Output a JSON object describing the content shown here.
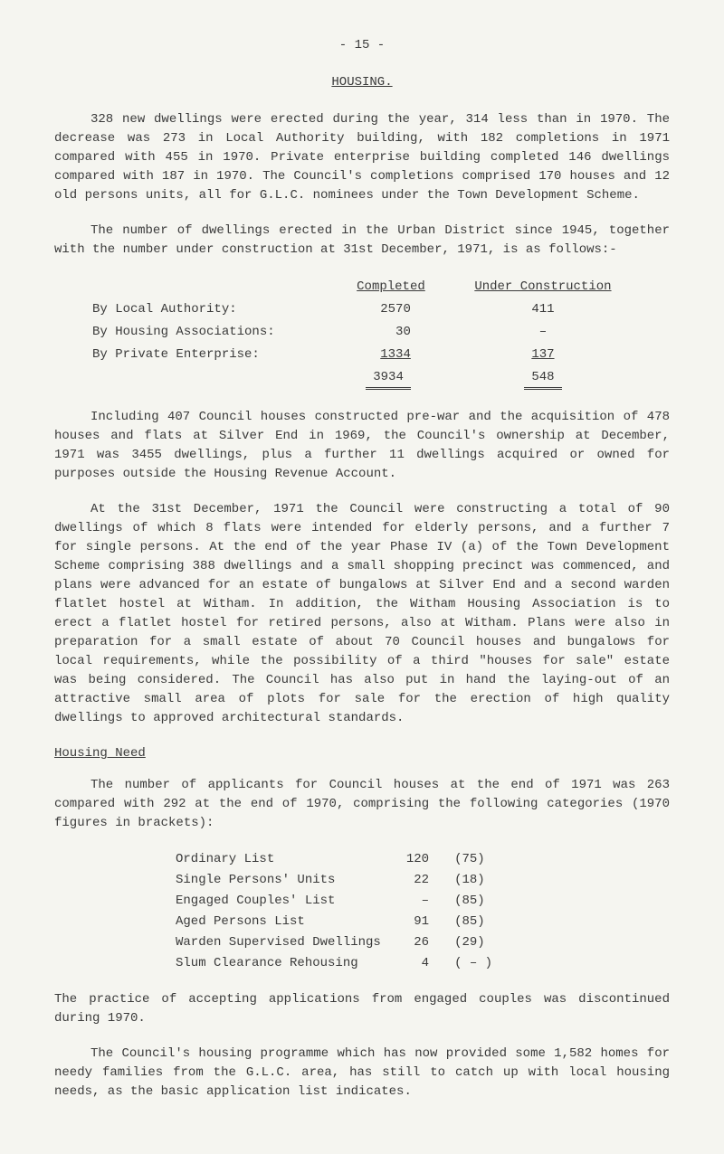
{
  "page_number": "- 15 -",
  "title": "HOUSING.",
  "para1": "328 new dwellings were erected during the year, 314 less than in 1970. The decrease was 273 in Local Authority building, with 182 completions in 1971 compared with 455 in 1970. Private enterprise building completed 146 dwellings compared with 187 in 1970. The Council's completions comprised 170 houses and 12 old persons units, all for G.L.C. nominees under the Town Development Scheme.",
  "para2": "The number of dwellings erected in the Urban District since 1945, together with the number under construction at 31st December, 1971, is as follows:-",
  "table1": {
    "col_headers": [
      "",
      "Completed",
      "Under Construction"
    ],
    "rows": [
      [
        "By Local Authority:",
        "2570",
        "411"
      ],
      [
        "By Housing Associations:",
        "30",
        "–"
      ],
      [
        "By Private Enterprise:",
        "1334",
        "137"
      ]
    ],
    "totals": [
      "",
      "3934",
      "548"
    ]
  },
  "para3": "Including 407 Council houses constructed pre-war and the acquisition of 478 houses and flats at Silver End in 1969, the Council's ownership at December, 1971 was 3455 dwellings, plus a further 11 dwellings acquired or owned for purposes outside the Housing Revenue Account.",
  "para4": "At the 31st December, 1971 the Council were constructing a total of 90 dwellings of which 8 flats were intended for elderly persons, and a further 7 for single persons. At the end of the year Phase IV (a) of the Town Development Scheme comprising 388 dwellings and a small shopping precinct was commenced, and plans were advanced for an estate of bungalows at Silver End and a second warden flatlet hostel at Witham. In addition, the Witham Housing Association is to erect a flatlet hostel for retired persons, also at Witham. Plans were also in preparation for a small estate of about 70 Council houses and bungalows for local requirements, while the possibility of a third \"houses for sale\" estate was being considered. The Council has also put in hand the laying-out of an attractive small area of plots for sale for the erection of high quality dwellings to approved architectural standards.",
  "subheading": "Housing Need",
  "para5": "The number of applicants for Council houses at the end of 1971 was 263 compared with 292 at the end of 1970, comprising the following categories (1970 figures in brackets):",
  "table2": {
    "rows": [
      [
        "Ordinary List",
        "120",
        "(75)"
      ],
      [
        "Single Persons' Units",
        "22",
        "(18)"
      ],
      [
        "Engaged Couples' List",
        "–",
        "(85)"
      ],
      [
        "Aged Persons List",
        "91",
        "(85)"
      ],
      [
        "Warden Supervised Dwellings",
        "26",
        "(29)"
      ],
      [
        "Slum Clearance Rehousing",
        "4",
        "( – )"
      ]
    ]
  },
  "para6": "The practice of accepting applications from engaged couples was discontinued during 1970.",
  "para7": "The Council's housing programme which has now provided some 1,582 homes for needy families from the G.L.C. area, has still to catch up with local housing needs, as the basic application list indicates."
}
